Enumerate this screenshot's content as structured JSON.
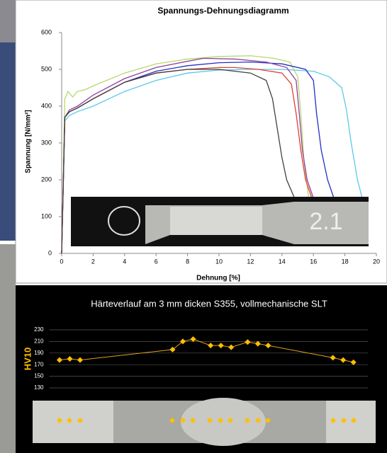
{
  "chart_data": [
    {
      "type": "line",
      "title": "Spannungs-Dehnungsdiagramm",
      "y_label": "Spannung [N/mm²]",
      "x_label": "Dehnung [%]",
      "xlim": [
        0,
        20
      ],
      "xticks": [
        0,
        2,
        4,
        6,
        8,
        10,
        12,
        14,
        16,
        18,
        20
      ],
      "ylim": [
        0,
        600
      ],
      "yticks": [
        0,
        100,
        200,
        300,
        400,
        500,
        600
      ],
      "grid": false,
      "series": [
        {
          "color": "#b5d96a",
          "x": [
            0,
            0.2,
            0.4,
            0.7,
            1,
            1.5,
            2,
            4,
            6,
            8,
            10,
            12,
            13.5,
            14.5,
            15,
            15.2,
            15.4,
            15.7
          ],
          "values": [
            0,
            420,
            440,
            425,
            440,
            445,
            455,
            490,
            515,
            528,
            535,
            537,
            530,
            520,
            480,
            380,
            250,
            150
          ]
        },
        {
          "color": "#5bc8e8",
          "x": [
            0,
            0.2,
            0.5,
            1,
            2,
            4,
            6,
            8,
            10,
            12,
            14,
            16,
            17,
            17.8,
            18.1,
            18.4,
            18.8,
            19.1
          ],
          "values": [
            0,
            360,
            375,
            385,
            400,
            440,
            470,
            490,
            498,
            500,
            500,
            495,
            480,
            450,
            390,
            300,
            200,
            150
          ]
        },
        {
          "color": "#2030c0",
          "x": [
            0,
            0.2,
            0.5,
            1,
            2,
            4,
            6,
            8,
            10,
            12,
            14,
            15.5,
            16,
            16.2,
            16.5,
            16.9,
            17.3
          ],
          "values": [
            0,
            370,
            385,
            395,
            420,
            465,
            495,
            510,
            518,
            520,
            515,
            500,
            470,
            380,
            280,
            200,
            150
          ]
        },
        {
          "color": "#9040a0",
          "x": [
            0,
            0.2,
            0.5,
            1,
            2,
            4,
            6,
            8,
            9,
            11,
            13,
            14.3,
            14.9,
            15.1,
            15.3,
            15.6,
            16
          ],
          "values": [
            0,
            370,
            390,
            400,
            430,
            475,
            505,
            522,
            530,
            528,
            520,
            505,
            470,
            380,
            280,
            200,
            150
          ]
        },
        {
          "color": "#e04030",
          "x": [
            0,
            0.2,
            0.5,
            1,
            2,
            4,
            6,
            8,
            10,
            11,
            12.5,
            14,
            14.6,
            14.9,
            15.2,
            15.5,
            15.9
          ],
          "values": [
            0,
            370,
            385,
            395,
            420,
            465,
            490,
            500,
            505,
            505,
            500,
            490,
            460,
            380,
            280,
            200,
            150
          ]
        },
        {
          "color": "#404040",
          "x": [
            0,
            0.2,
            0.5,
            1,
            2,
            4,
            6,
            8,
            10,
            12,
            13,
            13.4,
            13.7,
            14,
            14.3,
            14.8
          ],
          "values": [
            0,
            370,
            385,
            395,
            420,
            465,
            490,
            500,
            500,
            490,
            470,
            420,
            340,
            260,
            200,
            150
          ]
        }
      ]
    },
    {
      "type": "line",
      "title": "Härteverlauf am 3 mm dicken S355, vollmechanische SLT",
      "y_label": "HV10",
      "background": "#000000",
      "markers": true,
      "grid": true,
      "xlim": [
        -1,
        30
      ],
      "ylim": [
        130,
        230
      ],
      "yticks": [
        130,
        150,
        170,
        190,
        210,
        230
      ],
      "x": [
        0,
        1,
        2,
        11,
        12,
        13,
        14.7,
        15.7,
        16.7,
        18.3,
        19.3,
        20.3,
        26.6,
        27.6,
        28.6
      ],
      "series": [
        {
          "color": "#e0a020",
          "marker_color": "#ffc000",
          "values": [
            178,
            180,
            178,
            196,
            210,
            214,
            203,
            203,
            200,
            209,
            206,
            203,
            182,
            178,
            174
          ]
        }
      ]
    }
  ]
}
